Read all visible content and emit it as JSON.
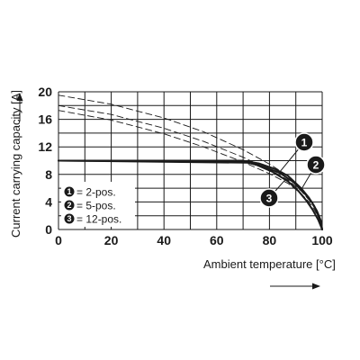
{
  "chart_data": {
    "type": "line",
    "xlabel": "Ambient temperature [°C]",
    "ylabel": "Current carrying capacity [A]",
    "xlim": [
      0,
      100
    ],
    "ylim": [
      0,
      20
    ],
    "x_ticks": [
      "0",
      "20",
      "40",
      "60",
      "80",
      "100"
    ],
    "y_ticks": [
      "0",
      "4",
      "8",
      "12",
      "16",
      "20"
    ],
    "grid": true,
    "legend": {
      "placement": "bottom-left",
      "entries": [
        {
          "marker": "1",
          "text": "= 2-pos."
        },
        {
          "marker": "2",
          "text": "= 5-pos."
        },
        {
          "marker": "3",
          "text": "= 12-pos."
        }
      ]
    },
    "series": [
      {
        "marker": "1",
        "style": "dashed",
        "x": [
          0,
          20,
          40,
          55,
          70,
          80,
          87,
          92,
          95,
          97,
          99,
          100
        ],
        "y": [
          19.5,
          18.2,
          16.2,
          14.2,
          11.6,
          9.5,
          7.8,
          6.0,
          4.6,
          3.4,
          1.6,
          0
        ]
      },
      {
        "marker": "2",
        "style": "dashed",
        "x": [
          0,
          20,
          40,
          55,
          70,
          80,
          87,
          92,
          95,
          97,
          99,
          100
        ],
        "y": [
          18.0,
          16.7,
          14.7,
          12.8,
          10.5,
          8.7,
          7.2,
          5.6,
          4.3,
          3.2,
          1.5,
          0
        ]
      },
      {
        "marker": "3",
        "style": "dashed",
        "x": [
          0,
          20,
          40,
          55,
          70,
          80,
          87,
          92,
          95,
          97,
          99,
          100
        ],
        "y": [
          17.3,
          15.9,
          13.9,
          12.0,
          9.8,
          8.1,
          6.7,
          5.2,
          4.0,
          2.9,
          1.4,
          0
        ]
      },
      {
        "marker": "1",
        "style": "solid",
        "x": [
          0,
          70,
          76,
          82,
          87,
          92,
          95,
          97,
          99,
          100
        ],
        "y": [
          10,
          10,
          9.6,
          8.8,
          7.8,
          6.0,
          4.6,
          3.4,
          1.6,
          0
        ]
      },
      {
        "marker": "2",
        "style": "solid",
        "x": [
          0,
          72,
          78,
          84,
          89,
          93,
          96,
          98,
          99.5,
          100
        ],
        "y": [
          10,
          9.7,
          9.1,
          8.2,
          6.9,
          5.4,
          4.0,
          2.7,
          1.3,
          0
        ]
      },
      {
        "marker": "3",
        "style": "solid",
        "x": [
          0,
          70,
          75,
          81,
          87,
          91,
          94,
          96.5,
          98.5,
          100
        ],
        "y": [
          10,
          9.9,
          9.4,
          8.4,
          7.0,
          5.6,
          4.2,
          2.8,
          1.4,
          0
        ]
      }
    ],
    "annotations": [
      {
        "label": "1",
        "points_to_series": 3
      },
      {
        "label": "2",
        "points_to_series": 4
      },
      {
        "label": "3",
        "points_to_series": 5
      }
    ],
    "colors": {
      "lines": "#1a1a1a",
      "grid": "#1a1a1a",
      "background": "#ffffff"
    }
  }
}
